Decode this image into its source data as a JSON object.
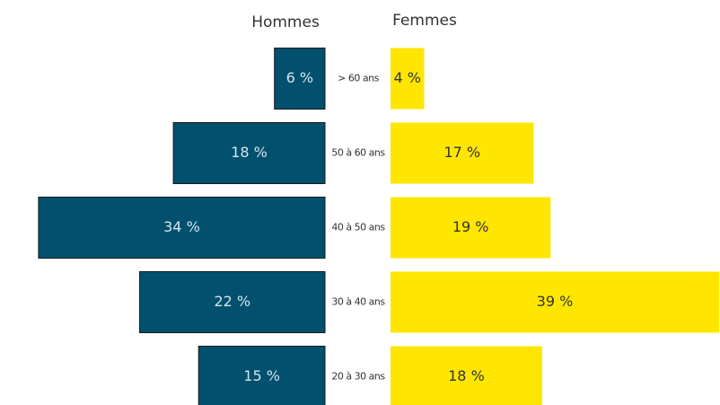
{
  "chart_data": {
    "type": "bar",
    "orientation": "horizontal-butterfly",
    "categories": [
      "> 60 ans",
      "50 à 60 ans",
      "40 à 50 ans",
      "30 à 40 ans",
      "20 à 30 ans"
    ],
    "series": [
      {
        "name": "Hommes",
        "color": "#00506e",
        "values": [
          6,
          18,
          34,
          22,
          15
        ],
        "value_labels": [
          "6 %",
          "18 %",
          "34 %",
          "22 %",
          "15 %"
        ]
      },
      {
        "name": "Femmes",
        "color": "#ffe600",
        "values": [
          4,
          17,
          19,
          39,
          18
        ],
        "value_labels": [
          "4 %",
          "17 %",
          "19 %",
          "39 %",
          "18 %"
        ]
      }
    ]
  }
}
